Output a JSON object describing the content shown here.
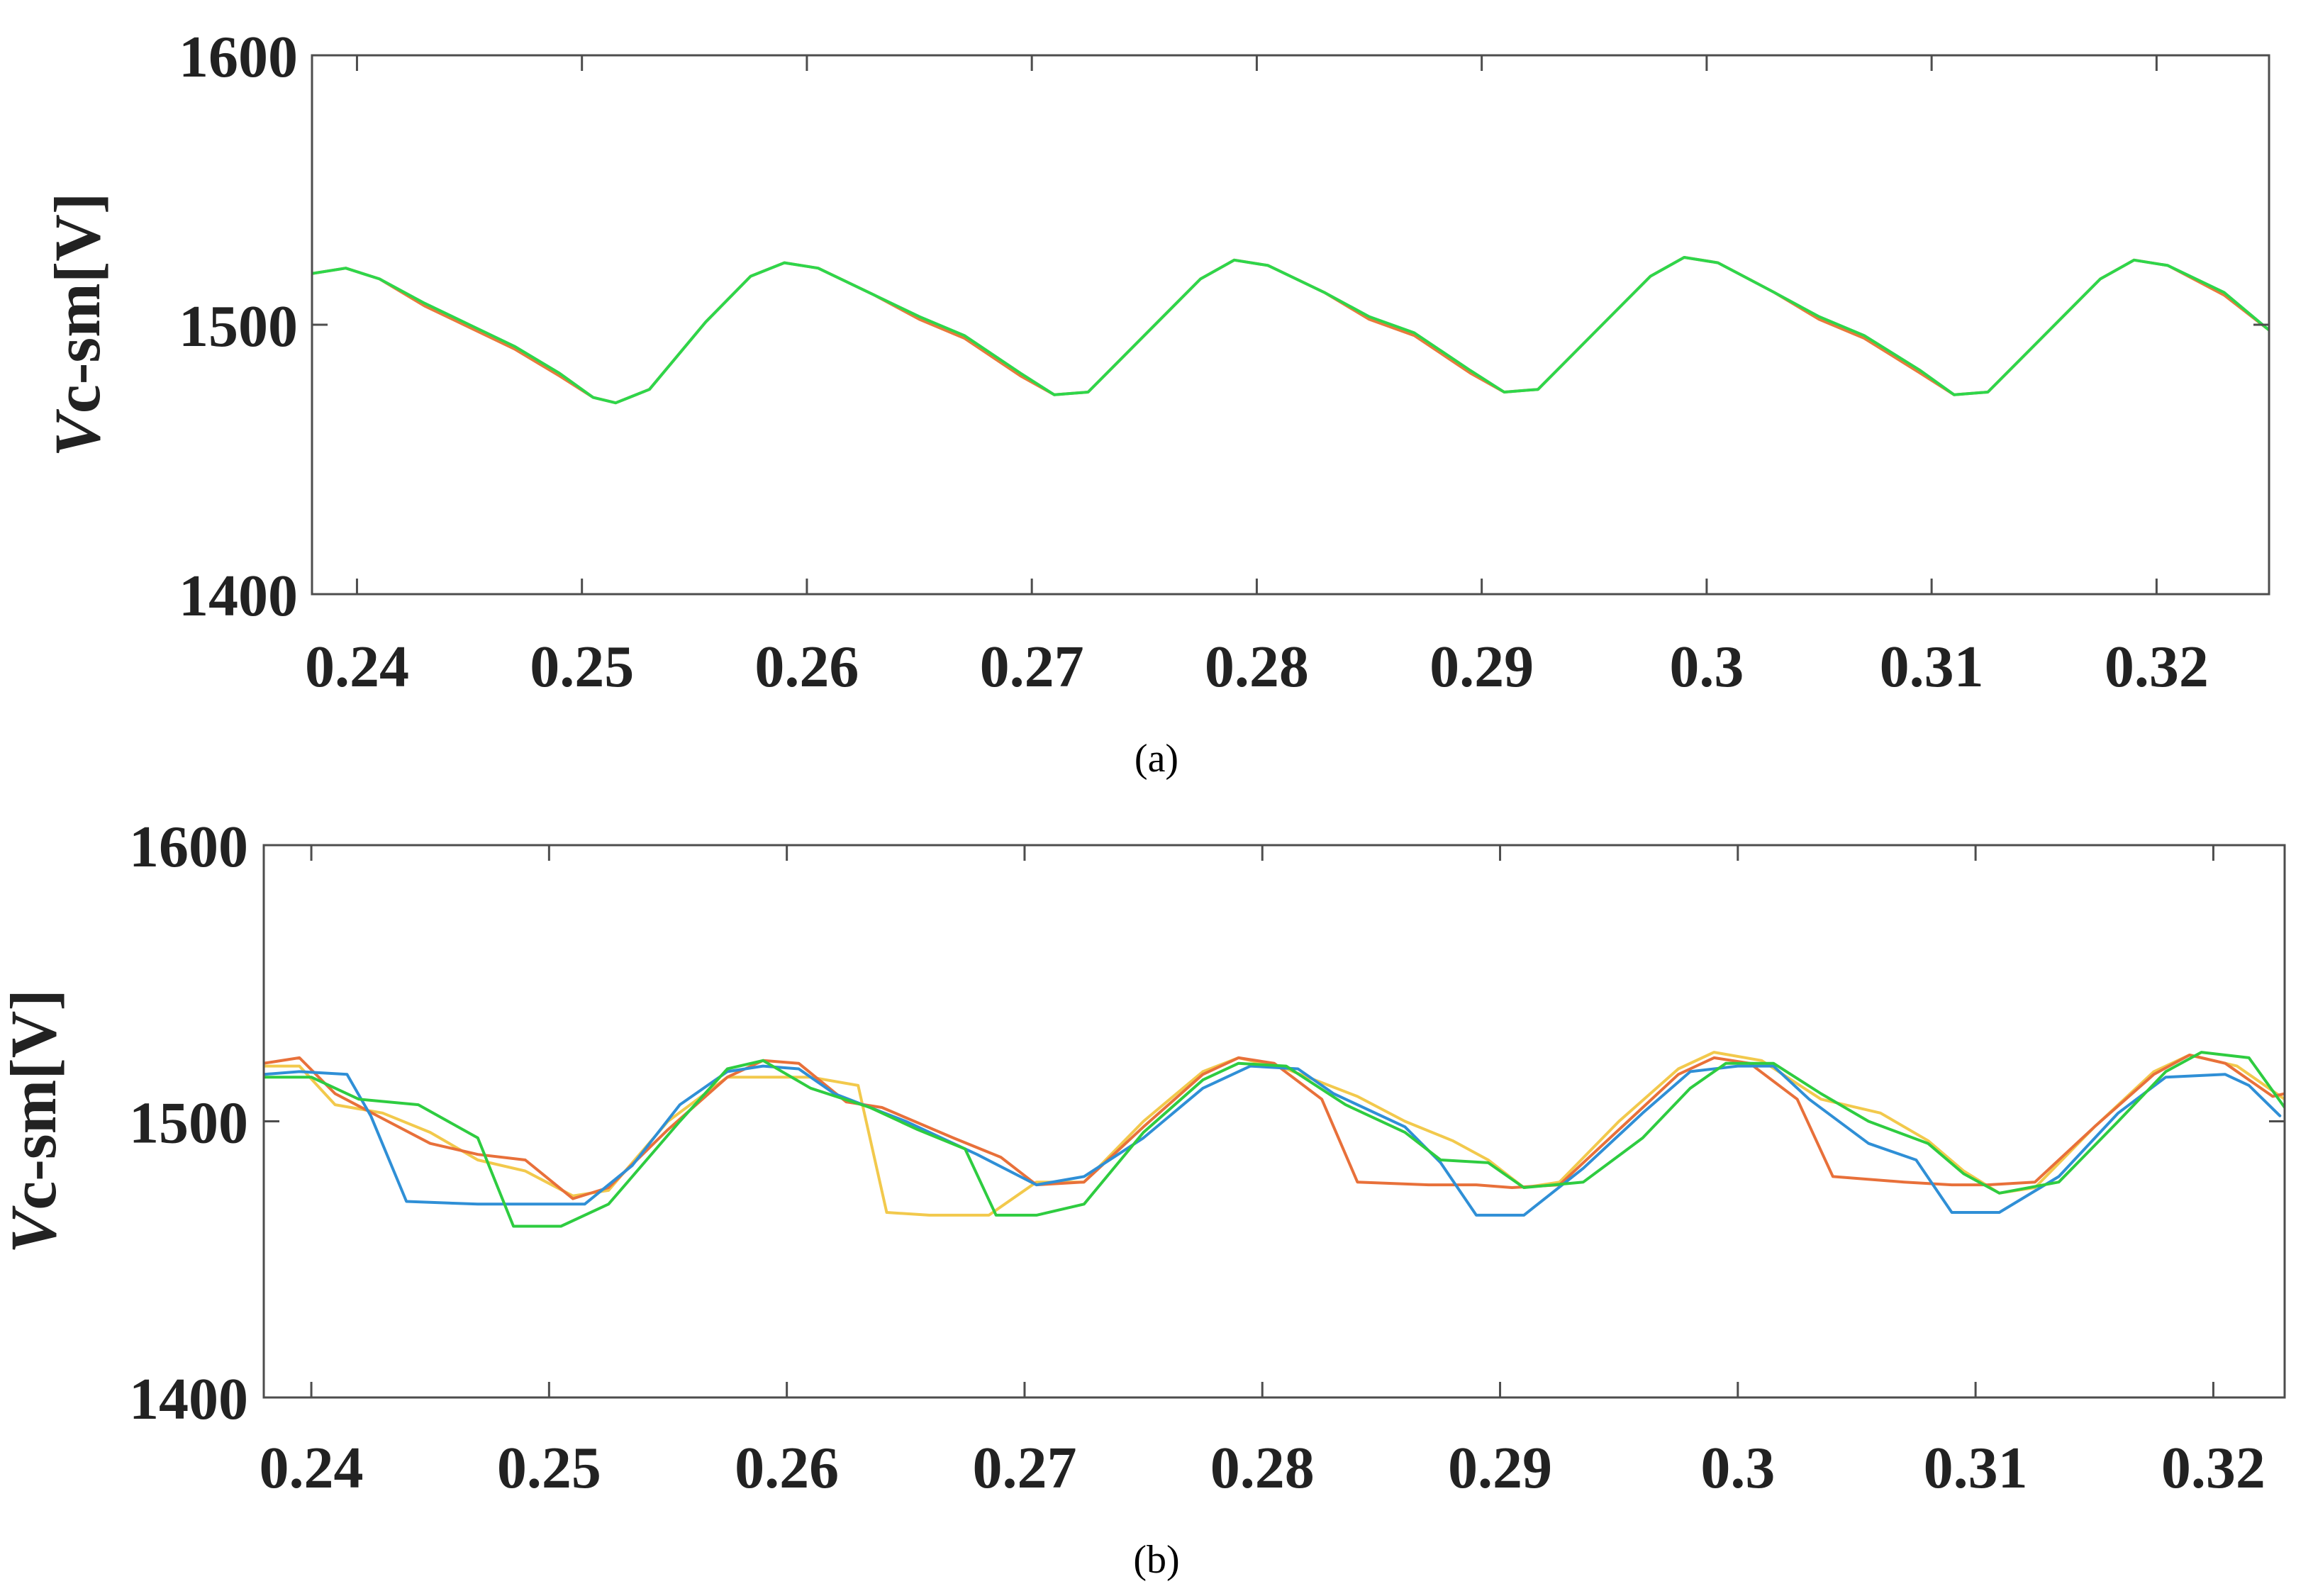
{
  "chart_data": [
    {
      "type": "line",
      "caption": "(a)",
      "ylabel_italic": "V",
      "ylabel_rest": "c-sm[V]",
      "xlim": [
        0.238,
        0.325
      ],
      "ylim": [
        1400,
        1600
      ],
      "xticks": [
        0.24,
        0.25,
        0.26,
        0.27,
        0.28,
        0.29,
        0.3,
        0.31,
        0.32
      ],
      "xtick_labels": [
        "0.24",
        "0.25",
        "0.26",
        "0.27",
        "0.28",
        "0.29",
        "0.3",
        "0.31",
        "0.32"
      ],
      "yticks": [
        1400,
        1500,
        1600
      ],
      "ytick_labels": [
        "1400",
        "1500",
        "1600"
      ],
      "grid": false,
      "series": [
        {
          "color": "#e87a3c",
          "x": [
            0.238,
            0.2395,
            0.241,
            0.243,
            0.245,
            0.247,
            0.249,
            0.2505,
            0.2515,
            0.253,
            0.2555,
            0.2575,
            0.259,
            0.2605,
            0.263,
            0.265,
            0.267,
            0.2695,
            0.271,
            0.2725,
            0.275,
            0.2775,
            0.279,
            0.2805,
            0.283,
            0.285,
            0.287,
            0.2895,
            0.291,
            0.2925,
            0.295,
            0.2975,
            0.299,
            0.3005,
            0.303,
            0.305,
            0.307,
            0.3095,
            0.311,
            0.3125,
            0.315,
            0.3175,
            0.319,
            0.3205,
            0.323,
            0.325
          ],
          "y": [
            1519,
            1521,
            1517,
            1507,
            1499,
            1491,
            1481,
            1473,
            1471,
            1476,
            1501,
            1518,
            1523,
            1521,
            1511,
            1502,
            1495,
            1481,
            1474,
            1475,
            1496,
            1517,
            1524,
            1522,
            1512,
            1502,
            1496,
            1482,
            1475,
            1476,
            1497,
            1518,
            1525,
            1523,
            1512,
            1502,
            1495,
            1482,
            1474,
            1475,
            1496,
            1517,
            1524,
            1522,
            1511,
            1498
          ]
        },
        {
          "color": "#2ed64a",
          "x": [
            0.238,
            0.2395,
            0.241,
            0.243,
            0.245,
            0.247,
            0.249,
            0.2505,
            0.2515,
            0.253,
            0.2555,
            0.2575,
            0.259,
            0.2605,
            0.263,
            0.265,
            0.267,
            0.2695,
            0.271,
            0.2725,
            0.275,
            0.2775,
            0.279,
            0.2805,
            0.283,
            0.285,
            0.287,
            0.2895,
            0.291,
            0.2925,
            0.295,
            0.2975,
            0.299,
            0.3005,
            0.303,
            0.305,
            0.307,
            0.3095,
            0.311,
            0.3125,
            0.315,
            0.3175,
            0.319,
            0.3205,
            0.323,
            0.325
          ],
          "y": [
            1519,
            1521,
            1517,
            1508,
            1500,
            1492,
            1482,
            1473,
            1471,
            1476,
            1501,
            1518,
            1523,
            1521,
            1511,
            1503,
            1496,
            1482,
            1474,
            1475,
            1496,
            1517,
            1524,
            1522,
            1512,
            1503,
            1497,
            1483,
            1475,
            1476,
            1497,
            1518,
            1525,
            1523,
            1512,
            1503,
            1496,
            1483,
            1474,
            1475,
            1496,
            1517,
            1524,
            1522,
            1512,
            1498
          ]
        }
      ]
    },
    {
      "type": "line",
      "caption": "(b)",
      "ylabel_italic": "V",
      "ylabel_rest": "c-sm[V]",
      "xlim": [
        0.238,
        0.323
      ],
      "ylim": [
        1400,
        1600
      ],
      "xticks": [
        0.24,
        0.25,
        0.26,
        0.27,
        0.28,
        0.29,
        0.3,
        0.31,
        0.32
      ],
      "xtick_labels": [
        "0.24",
        "0.25",
        "0.26",
        "0.27",
        "0.28",
        "0.29",
        "0.3",
        "0.31",
        "0.32"
      ],
      "yticks": [
        1400,
        1500,
        1600
      ],
      "ytick_labels": [
        "1400",
        "1500",
        "1600"
      ],
      "grid": false,
      "series": [
        {
          "color": "#f2c94c",
          "x": [
            0.238,
            0.2395,
            0.241,
            0.243,
            0.245,
            0.247,
            0.249,
            0.251,
            0.2525,
            0.255,
            0.2575,
            0.259,
            0.261,
            0.263,
            0.2642,
            0.266,
            0.2685,
            0.2705,
            0.2725,
            0.275,
            0.2775,
            0.279,
            0.281,
            0.284,
            0.286,
            0.288,
            0.2895,
            0.291,
            0.2925,
            0.295,
            0.2975,
            0.299,
            0.301,
            0.3035,
            0.306,
            0.308,
            0.3095,
            0.311,
            0.3125,
            0.315,
            0.3175,
            0.319,
            0.321,
            0.323
          ],
          "y": [
            1520,
            1520,
            1506,
            1503,
            1496,
            1486,
            1482,
            1473,
            1475,
            1500,
            1516,
            1516,
            1516,
            1513,
            1467,
            1466,
            1466,
            1478,
            1478,
            1500,
            1518,
            1523,
            1519,
            1509,
            1500,
            1493,
            1486,
            1476,
            1478,
            1500,
            1519,
            1525,
            1522,
            1508,
            1503,
            1493,
            1482,
            1474,
            1476,
            1498,
            1518,
            1524,
            1520,
            1508
          ]
        },
        {
          "color": "#e8703a",
          "x": [
            0.238,
            0.2395,
            0.241,
            0.243,
            0.245,
            0.247,
            0.249,
            0.251,
            0.2525,
            0.255,
            0.2575,
            0.259,
            0.2605,
            0.2625,
            0.264,
            0.267,
            0.269,
            0.2705,
            0.2725,
            0.275,
            0.2775,
            0.279,
            0.2805,
            0.2825,
            0.284,
            0.287,
            0.289,
            0.2905,
            0.2925,
            0.295,
            0.2975,
            0.299,
            0.3005,
            0.3025,
            0.304,
            0.307,
            0.309,
            0.3105,
            0.3125,
            0.315,
            0.3175,
            0.319,
            0.3205,
            0.3225,
            0.323
          ],
          "y": [
            1521,
            1523,
            1510,
            1501,
            1492,
            1488,
            1486,
            1472,
            1476,
            1497,
            1516,
            1522,
            1521,
            1507,
            1505,
            1494,
            1487,
            1477,
            1478,
            1498,
            1517,
            1523,
            1521,
            1508,
            1478,
            1477,
            1477,
            1476,
            1477,
            1497,
            1517,
            1523,
            1521,
            1508,
            1480,
            1478,
            1477,
            1477,
            1478,
            1498,
            1517,
            1524,
            1521,
            1509,
            1510
          ]
        },
        {
          "color": "#2f8fd6",
          "x": [
            0.238,
            0.2395,
            0.2415,
            0.2425,
            0.244,
            0.247,
            0.249,
            0.2515,
            0.2535,
            0.2555,
            0.2575,
            0.259,
            0.2605,
            0.262,
            0.265,
            0.268,
            0.2705,
            0.2725,
            0.275,
            0.2775,
            0.2795,
            0.2815,
            0.283,
            0.286,
            0.2875,
            0.289,
            0.291,
            0.2935,
            0.296,
            0.298,
            0.3,
            0.3015,
            0.303,
            0.3055,
            0.3075,
            0.309,
            0.311,
            0.3135,
            0.316,
            0.318,
            0.3205,
            0.3215,
            0.3228
          ],
          "y": [
            1517,
            1518,
            1517,
            1502,
            1471,
            1470,
            1470,
            1470,
            1484,
            1506,
            1518,
            1520,
            1519,
            1510,
            1500,
            1488,
            1477,
            1480,
            1494,
            1512,
            1520,
            1519,
            1510,
            1498,
            1485,
            1466,
            1466,
            1483,
            1503,
            1518,
            1520,
            1520,
            1508,
            1492,
            1486,
            1467,
            1467,
            1480,
            1503,
            1516,
            1517,
            1513,
            1502
          ]
        },
        {
          "color": "#2ecc40",
          "x": [
            0.238,
            0.24,
            0.242,
            0.2445,
            0.247,
            0.2485,
            0.2505,
            0.2525,
            0.2555,
            0.2575,
            0.259,
            0.261,
            0.2635,
            0.2655,
            0.2675,
            0.2688,
            0.2705,
            0.2725,
            0.275,
            0.2775,
            0.279,
            0.281,
            0.2835,
            0.286,
            0.2875,
            0.2895,
            0.291,
            0.2935,
            0.296,
            0.298,
            0.2995,
            0.3015,
            0.3035,
            0.3055,
            0.308,
            0.3095,
            0.311,
            0.3135,
            0.316,
            0.318,
            0.3195,
            0.3215,
            0.323
          ],
          "y": [
            1516,
            1516,
            1508,
            1506,
            1494,
            1462,
            1462,
            1470,
            1500,
            1519,
            1522,
            1512,
            1505,
            1497,
            1490,
            1466,
            1466,
            1470,
            1496,
            1515,
            1521,
            1520,
            1506,
            1496,
            1486,
            1485,
            1476,
            1478,
            1494,
            1512,
            1521,
            1521,
            1510,
            1500,
            1492,
            1481,
            1474,
            1478,
            1500,
            1518,
            1525,
            1523,
            1505
          ]
        }
      ]
    }
  ]
}
